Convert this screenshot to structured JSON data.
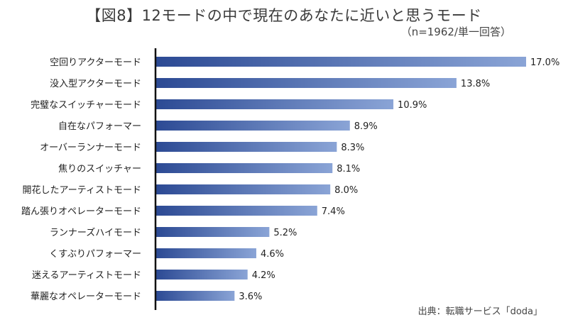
{
  "title": "【図8】12モードの中で現在のあなたに近いと思うモード",
  "subtitle": "（n=1962/単一回答）",
  "source": "出典：転職サービス「doda」",
  "colors": {
    "bar_start": "#2c4a94",
    "bar_end": "#8aa4d6",
    "axis": "#111111"
  },
  "chart_data": {
    "type": "bar",
    "orientation": "horizontal",
    "title": "【図8】12モードの中で現在のあなたに近いと思うモード",
    "subtitle": "（n=1962/単一回答）",
    "value_suffix": "%",
    "categories": [
      "空回りアクターモード",
      "没入型アクターモード",
      "完璧なスイッチャーモード",
      "自在なパフォーマー",
      "オーバーランナーモード",
      "焦りのスイッチャー",
      "開花したアーティストモード",
      "踏ん張りオペレーターモード",
      "ランナーズハイモード",
      "くすぶりパフォーマー",
      "迷えるアーティストモード",
      "華麗なオペレーターモード"
    ],
    "values": [
      17.0,
      13.8,
      10.9,
      8.9,
      8.3,
      8.1,
      8.0,
      7.4,
      5.2,
      4.6,
      4.2,
      3.6
    ],
    "value_labels": [
      "17.0%",
      "13.8%",
      "10.9%",
      "8.9%",
      "8.3%",
      "8.1%",
      "8.0%",
      "7.4%",
      "5.2%",
      "4.6%",
      "4.2%",
      "3.6%"
    ],
    "xlim": [
      0,
      17.0
    ],
    "grid": false
  }
}
